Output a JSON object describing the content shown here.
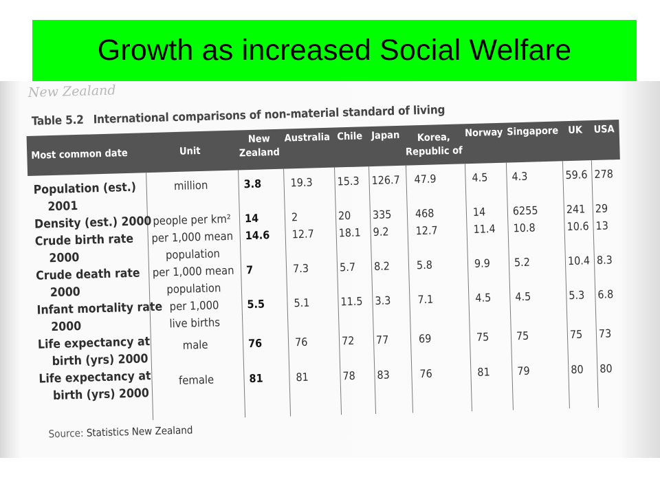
{
  "slide": {
    "title": "Growth as increased Social Welfare",
    "title_bg": "#00ff00"
  },
  "table": {
    "cut_off_text": "New Zealand",
    "caption_number": "Table 5.2",
    "caption_title": "International comparisons of non-material standard of living",
    "header": {
      "date": "Most common date",
      "unit": "Unit",
      "countries": [
        "New Zealand",
        "Australia",
        "Chile",
        "Japan",
        "Korea, Republic of",
        "Norway",
        "Singapore",
        "UK",
        "USA"
      ]
    },
    "row_labels": [
      "Population (est.)",
      "2001",
      "Density (est.) 2000",
      "Crude birth rate",
      "2000",
      "Crude death rate",
      "2000",
      "Infant mortality rate",
      "2000",
      "Life expectancy at",
      "birth (yrs) 2000",
      "Life expectancy at",
      "birth (yrs) 2000"
    ],
    "units": [
      "million",
      "people per km²",
      "per 1,000 mean",
      "population",
      "per 1,000 mean",
      "population",
      "per 1,000",
      "live births",
      "male",
      "female"
    ],
    "rows": [
      {
        "name": "Population",
        "values": [
          "3.8",
          "19.3",
          "15.3",
          "126.7",
          "47.9",
          "4.5",
          "4.3",
          "59.6",
          "278"
        ]
      },
      {
        "name": "Density",
        "values": [
          "14",
          "2",
          "20",
          "335",
          "468",
          "14",
          "6255",
          "241",
          "29"
        ]
      },
      {
        "name": "Crude birth rate",
        "values": [
          "14.6",
          "12.7",
          "18.1",
          "9.2",
          "12.7",
          "11.4",
          "10.8",
          "10.6",
          "13"
        ]
      },
      {
        "name": "Crude death rate",
        "values": [
          "7",
          "7.3",
          "5.7",
          "8.2",
          "5.8",
          "9.9",
          "5.2",
          "10.4",
          "8.3"
        ]
      },
      {
        "name": "Infant mortality rate",
        "values": [
          "5.5",
          "5.1",
          "11.5",
          "3.3",
          "7.1",
          "4.5",
          "4.5",
          "5.3",
          "6.8"
        ]
      },
      {
        "name": "Life expectancy male",
        "values": [
          "76",
          "76",
          "72",
          "77",
          "69",
          "75",
          "75",
          "75",
          "73"
        ]
      },
      {
        "name": "Life expectancy female",
        "values": [
          "81",
          "81",
          "78",
          "83",
          "76",
          "81",
          "79",
          "80",
          "80"
        ]
      }
    ],
    "source_label": "Source:",
    "source_text": "Statistics New Zealand"
  }
}
